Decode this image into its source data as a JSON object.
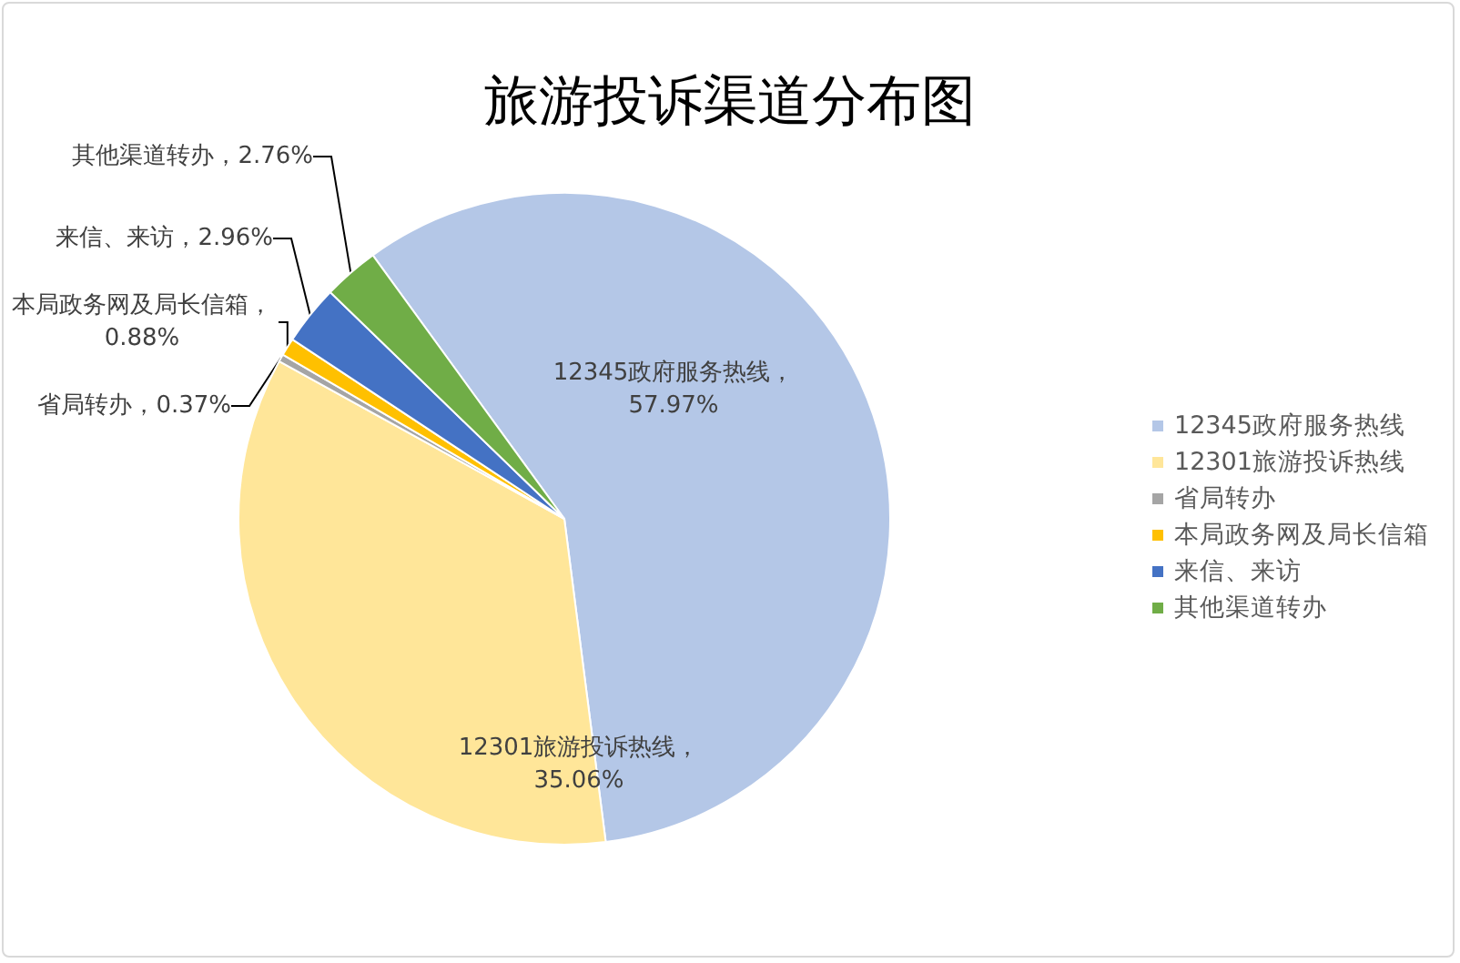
{
  "chart_data": {
    "type": "pie",
    "title": "旅游投诉渠道分布图",
    "categories": [
      "12345政府服务热线",
      "12301旅游投诉热线",
      "省局转办",
      "本局政务网及局长信箱",
      "来信、来访",
      "其他渠道转办"
    ],
    "values": [
      57.97,
      35.06,
      0.37,
      0.88,
      2.96,
      2.76
    ],
    "colors": [
      "#b4c7e7",
      "#ffe699",
      "#a5a5a5",
      "#ffc000",
      "#4472c4",
      "#70ad47"
    ],
    "value_labels": [
      "12345政府服务热线，57.97%",
      "12301旅游投诉热线，35.06%",
      "省局转办，0.37%",
      "本局政务网及局长信箱，0.88%",
      "来信、来访，2.96%",
      "其他渠道转办，2.76%"
    ],
    "legend": "right"
  }
}
